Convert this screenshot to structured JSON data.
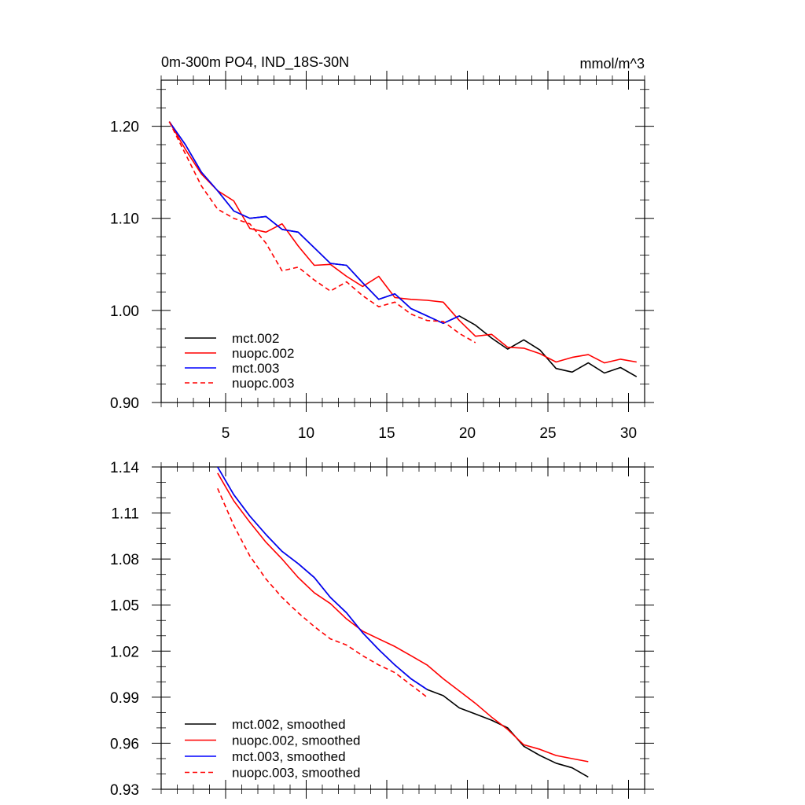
{
  "chart_data": [
    {
      "type": "line",
      "title": "0m-300m PO4, IND_18S-30N",
      "units": "mmol/m^3",
      "xlim": [
        1,
        31
      ],
      "ylim": [
        0.9,
        1.25
      ],
      "x_ticks": [
        5,
        10,
        15,
        20,
        25,
        30
      ],
      "y_ticks": [
        0.9,
        1.0,
        1.1,
        1.2
      ],
      "x_tick_labels": [
        "5",
        "10",
        "15",
        "20",
        "25",
        "30"
      ],
      "y_tick_labels": [
        "0.90",
        "1.00",
        "1.10",
        "1.20"
      ],
      "legend_position": "bottom-left",
      "series": [
        {
          "name": "mct.002",
          "color": "#000000",
          "dash": "solid",
          "x": [
            1.5,
            2.5,
            3.5,
            4.5,
            5.5,
            6.5,
            7.5,
            8.5,
            9.5,
            10.5,
            11.5,
            12.5,
            13.5,
            14.5,
            15.5,
            16.5,
            17.5,
            18.5,
            19.5,
            20.5,
            21.5,
            22.5,
            23.5,
            24.5,
            25.5,
            26.5,
            27.5,
            28.5,
            29.5,
            30.5
          ],
          "values": [
            1.205,
            1.18,
            1.15,
            1.13,
            1.108,
            1.1,
            1.102,
            1.088,
            1.085,
            1.068,
            1.051,
            1.049,
            1.03,
            1.012,
            1.018,
            1.002,
            0.994,
            0.986,
            0.994,
            0.984,
            0.97,
            0.958,
            0.968,
            0.957,
            0.937,
            0.933,
            0.943,
            0.932,
            0.938,
            0.928
          ]
        },
        {
          "name": "nuopc.002",
          "color": "#ff0000",
          "dash": "solid",
          "x": [
            1.5,
            2.5,
            3.5,
            4.5,
            5.5,
            6.5,
            7.5,
            8.5,
            9.5,
            10.5,
            11.5,
            12.5,
            13.5,
            14.5,
            15.5,
            16.5,
            17.5,
            18.5,
            19.5,
            20.5,
            21.5,
            22.5,
            23.5,
            24.5,
            25.5,
            26.5,
            27.5,
            28.5,
            29.5,
            30.5
          ],
          "values": [
            1.205,
            1.175,
            1.148,
            1.13,
            1.119,
            1.089,
            1.085,
            1.094,
            1.07,
            1.049,
            1.05,
            1.037,
            1.026,
            1.037,
            1.014,
            1.012,
            1.011,
            1.009,
            0.989,
            0.972,
            0.974,
            0.96,
            0.959,
            0.953,
            0.944,
            0.949,
            0.952,
            0.943,
            0.947,
            0.944
          ]
        },
        {
          "name": "mct.003",
          "color": "#0000ff",
          "dash": "solid",
          "x": [
            1.5,
            2.5,
            3.5,
            4.5,
            5.5,
            6.5,
            7.5,
            8.5,
            9.5,
            10.5,
            11.5,
            12.5,
            13.5,
            14.5,
            15.5,
            16.5,
            17.5,
            18.5,
            19.5
          ],
          "values": [
            1.205,
            1.18,
            1.15,
            1.13,
            1.108,
            1.1,
            1.102,
            1.088,
            1.085,
            1.068,
            1.051,
            1.049,
            1.03,
            1.012,
            1.018,
            1.002,
            0.994,
            0.986,
            0.994
          ]
        },
        {
          "name": "nuopc.003",
          "color": "#ff0000",
          "dash": "dashed",
          "x": [
            1.5,
            2.5,
            3.5,
            4.5,
            5.5,
            6.5,
            7.5,
            8.5,
            9.5,
            10.5,
            11.5,
            12.5,
            13.5,
            14.5,
            15.5,
            16.5,
            17.5,
            18.5,
            19.5,
            20.5
          ],
          "values": [
            1.205,
            1.17,
            1.135,
            1.11,
            1.1,
            1.094,
            1.073,
            1.043,
            1.047,
            1.033,
            1.021,
            1.031,
            1.016,
            1.004,
            1.009,
            0.996,
            0.989,
            0.988,
            0.975,
            0.965
          ]
        }
      ]
    },
    {
      "type": "line",
      "title": "",
      "xlim": [
        1,
        31
      ],
      "ylim": [
        0.93,
        1.14
      ],
      "x_ticks": [
        5,
        10,
        15,
        20,
        25,
        30
      ],
      "y_ticks": [
        0.93,
        0.96,
        0.99,
        1.02,
        1.05,
        1.08,
        1.11,
        1.14
      ],
      "y_tick_labels": [
        "0.93",
        "0.96",
        "0.99",
        "1.02",
        "1.05",
        "1.08",
        "1.11",
        "1.14"
      ],
      "legend_position": "bottom-left",
      "series": [
        {
          "name": "mct.002, smoothed",
          "color": "#000000",
          "dash": "solid",
          "x": [
            4.5,
            5.5,
            6.5,
            7.5,
            8.5,
            9.5,
            10.5,
            11.5,
            12.5,
            13.5,
            14.5,
            15.5,
            16.5,
            17.5,
            18.5,
            19.5,
            20.5,
            21.5,
            22.5,
            23.5,
            24.5,
            25.5,
            26.5,
            27.5
          ],
          "values": [
            1.14,
            1.122,
            1.108,
            1.096,
            1.085,
            1.077,
            1.068,
            1.055,
            1.045,
            1.032,
            1.021,
            1.011,
            1.002,
            0.995,
            0.991,
            0.983,
            0.979,
            0.975,
            0.97,
            0.958,
            0.952,
            0.947,
            0.944,
            0.938
          ]
        },
        {
          "name": "nuopc.002, smoothed",
          "color": "#ff0000",
          "dash": "solid",
          "x": [
            4.5,
            5.5,
            6.5,
            7.5,
            8.5,
            9.5,
            10.5,
            11.5,
            12.5,
            13.5,
            14.5,
            15.5,
            16.5,
            17.5,
            18.5,
            19.5,
            20.5,
            21.5,
            22.5,
            23.5,
            24.5,
            25.5,
            26.5,
            27.5
          ],
          "values": [
            1.136,
            1.118,
            1.104,
            1.091,
            1.08,
            1.068,
            1.058,
            1.051,
            1.041,
            1.033,
            1.028,
            1.023,
            1.017,
            1.011,
            1.002,
            0.994,
            0.986,
            0.977,
            0.969,
            0.959,
            0.956,
            0.952,
            0.95,
            0.948
          ]
        },
        {
          "name": "mct.003, smoothed",
          "color": "#0000ff",
          "dash": "solid",
          "x": [
            4.5,
            5.5,
            6.5,
            7.5,
            8.5,
            9.5,
            10.5,
            11.5,
            12.5,
            13.5,
            14.5,
            15.5,
            16.5,
            17.5
          ],
          "values": [
            1.14,
            1.122,
            1.108,
            1.096,
            1.085,
            1.077,
            1.068,
            1.055,
            1.045,
            1.032,
            1.021,
            1.011,
            1.002,
            0.995
          ]
        },
        {
          "name": "nuopc.003, smoothed",
          "color": "#ff0000",
          "dash": "dashed",
          "x": [
            4.5,
            5.5,
            6.5,
            7.5,
            8.5,
            9.5,
            10.5,
            11.5,
            12.5,
            13.5,
            14.5,
            15.5,
            16.5,
            17.5
          ],
          "values": [
            1.126,
            1.102,
            1.082,
            1.067,
            1.055,
            1.045,
            1.036,
            1.028,
            1.024,
            1.017,
            1.011,
            1.006,
            0.998,
            0.99
          ]
        }
      ]
    }
  ]
}
